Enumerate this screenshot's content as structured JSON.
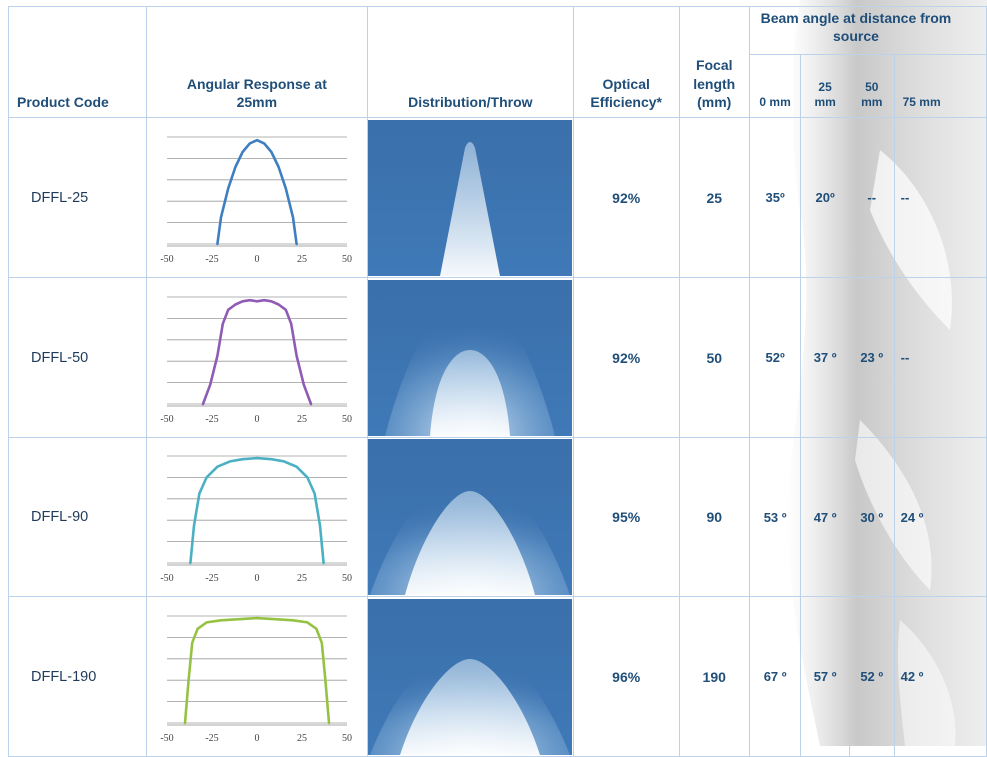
{
  "headers": {
    "product_code": "Product Code",
    "angular_response": "Angular Response at 25mm",
    "distribution": "Distribution/Throw",
    "optical_efficiency": "Optical Efficiency*",
    "focal_length": "Focal length (mm)",
    "beam_angle_group": "Beam angle at distance from source",
    "distances": [
      "0 mm",
      "25 mm",
      "50 mm",
      "75 mm"
    ]
  },
  "colors": {
    "header_text": "#1f4e79",
    "grid": "#bcd2ea",
    "series": [
      "#3f7ec0",
      "#8f5bb5",
      "#4ab0c2",
      "#96c244"
    ],
    "throw_bg": "#3c73ae"
  },
  "axis_tick_labels": [
    "-50",
    "-25",
    "0",
    "25",
    "50"
  ],
  "rows": [
    {
      "code": "DFFL-25",
      "efficiency": "92%",
      "focal": "25",
      "beam": [
        "35º",
        "20º",
        "--",
        "--"
      ],
      "chart_data": {
        "type": "line",
        "x": [
          -22,
          -20,
          -16,
          -12,
          -8,
          -4,
          0,
          4,
          8,
          12,
          16,
          20,
          22
        ],
        "values": [
          0,
          25,
          52,
          72,
          86,
          94,
          97,
          94,
          86,
          72,
          52,
          25,
          0
        ],
        "xlim": [
          -50,
          50
        ],
        "ylim": [
          0,
          100
        ]
      }
    },
    {
      "code": "DFFL-50",
      "efficiency": "92%",
      "focal": "50",
      "beam": [
        "52º",
        "37 º",
        "23 º",
        "--"
      ],
      "chart_data": {
        "type": "line",
        "x": [
          -30,
          -26,
          -22,
          -19,
          -16,
          -12,
          -8,
          -4,
          0,
          4,
          8,
          12,
          16,
          19,
          22,
          26,
          30
        ],
        "values": [
          0,
          18,
          45,
          75,
          88,
          93,
          96,
          97,
          96,
          97,
          96,
          93,
          88,
          75,
          45,
          18,
          0
        ],
        "xlim": [
          -50,
          50
        ],
        "ylim": [
          0,
          100
        ]
      }
    },
    {
      "code": "DFFL-90",
      "efficiency": "95%",
      "focal": "90",
      "beam": [
        "53 º",
        "47 º",
        "30 º",
        "24 º"
      ],
      "chart_data": {
        "type": "line",
        "x": [
          -37,
          -35,
          -32,
          -28,
          -22,
          -15,
          -8,
          0,
          8,
          15,
          22,
          28,
          32,
          35,
          37
        ],
        "values": [
          0,
          35,
          65,
          80,
          90,
          95,
          97,
          98,
          97,
          95,
          90,
          80,
          65,
          35,
          0
        ],
        "xlim": [
          -50,
          50
        ],
        "ylim": [
          0,
          100
        ]
      }
    },
    {
      "code": "DFFL-190",
      "efficiency": "96%",
      "focal": "190",
      "beam": [
        "67 º",
        "57 º",
        "52 º",
        "42 º"
      ],
      "chart_data": {
        "type": "line",
        "x": [
          -40,
          -38,
          -36,
          -33,
          -28,
          -20,
          -10,
          0,
          10,
          20,
          28,
          33,
          36,
          38,
          40
        ],
        "values": [
          0,
          40,
          75,
          88,
          94,
          96,
          97,
          98,
          97,
          96,
          94,
          88,
          75,
          40,
          0
        ],
        "xlim": [
          -50,
          50
        ],
        "ylim": [
          0,
          100
        ]
      }
    }
  ]
}
